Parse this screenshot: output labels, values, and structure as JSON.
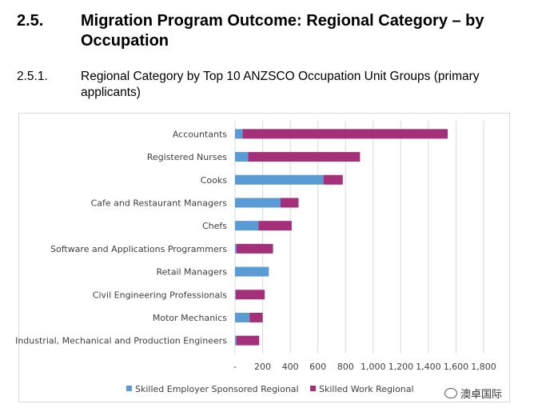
{
  "heading": {
    "number": "2.5.",
    "title": "Migration Program Outcome: Regional Category – by Occupation"
  },
  "subheading": {
    "number": "2.5.1.",
    "title": "Regional Category by Top 10 ANZSCO Occupation Unit Groups (primary applicants)"
  },
  "chart_data": {
    "type": "bar",
    "orientation": "horizontal",
    "stacked": true,
    "categories": [
      "Accountants",
      "Registered Nurses",
      "Cooks",
      "Cafe and Restaurant Managers",
      "Chefs",
      "Software and Applications Programmers",
      "Retail Managers",
      "Civil Engineering Professionals",
      "Motor Mechanics",
      "Industrial, Mechanical and Production Engineers"
    ],
    "series": [
      {
        "name": "Skilled Employer Sponsored Regional",
        "color": "#5b9bd5",
        "values": [
          55,
          95,
          640,
          330,
          170,
          10,
          245,
          5,
          105,
          10
        ]
      },
      {
        "name": "Skilled Work Regional",
        "color": "#a5307a",
        "values": [
          1485,
          810,
          140,
          130,
          240,
          265,
          0,
          210,
          95,
          165
        ]
      }
    ],
    "xlim": [
      0,
      1800
    ],
    "xticks": [
      "-",
      "200",
      "400",
      "600",
      "800",
      "1,000",
      "1,200",
      "1,400",
      "1,600",
      "1,800"
    ],
    "grid": "vertical",
    "legend": "bottom"
  },
  "watermark": {
    "text": "澳卓国际"
  }
}
